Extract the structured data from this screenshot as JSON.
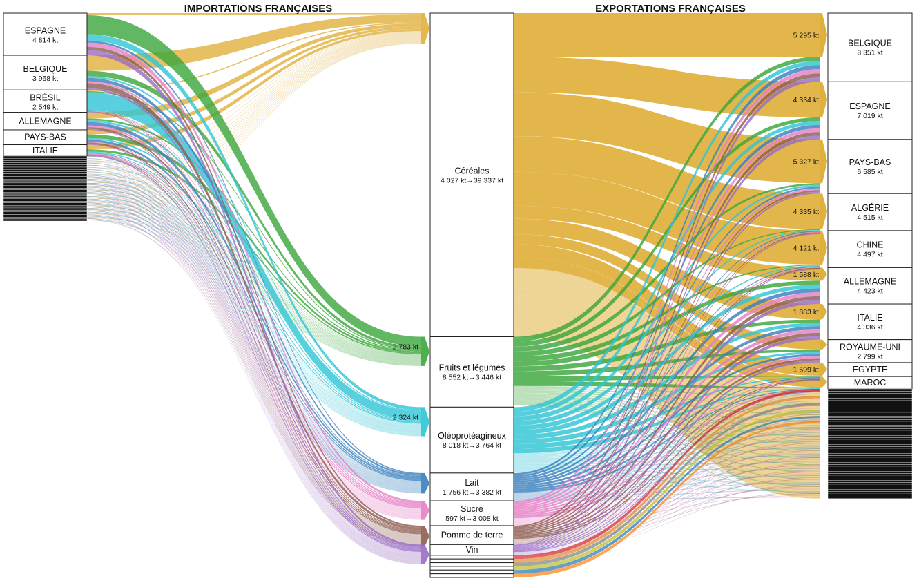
{
  "chart_data": {
    "type": "sankey",
    "title_left": "IMPORTATIONS FRANÇAISES",
    "title_right": "EXPORTATIONS FRANÇAISES",
    "import_countries": [
      {
        "name": "ESPAGNE",
        "value_label": "4 814 kt",
        "value": 4814
      },
      {
        "name": "BELGIQUE",
        "value_label": "3 968 kt",
        "value": 3968
      },
      {
        "name": "BRÉSIL",
        "value_label": "2 549 kt",
        "value": 2549
      },
      {
        "name": "ALLEMAGNE",
        "value_label": "",
        "value": 2000
      },
      {
        "name": "PAYS-BAS",
        "value_label": "",
        "value": 1700
      },
      {
        "name": "ITALIE",
        "value_label": "",
        "value": 1300
      }
    ],
    "products": [
      {
        "name": "Céréales",
        "flow_label": "4 027 kt→39 337 kt",
        "import": 4027,
        "export": 39337,
        "color": "#e0b03c"
      },
      {
        "name": "Fruits et légumes",
        "flow_label": "8 552 kt→3 446 kt",
        "import": 8552,
        "export": 3446,
        "color": "#3ba63b"
      },
      {
        "name": "Oléoprotéagineux",
        "flow_label": "8 018 kt→3 764 kt",
        "import": 8018,
        "export": 3764,
        "color": "#2fc4d4"
      },
      {
        "name": "Lait",
        "flow_label": "1 756 kt→3 382 kt",
        "import": 1756,
        "export": 3382,
        "color": "#3a80bd"
      },
      {
        "name": "Sucre",
        "flow_label": "597 kt→3 008 kt",
        "import": 597,
        "export": 3008,
        "color": "#e57fc6"
      },
      {
        "name": "Pomme de terre",
        "flow_label": "",
        "import": 1500,
        "export": 2300,
        "color": "#8f5d52"
      },
      {
        "name": "Vin",
        "flow_label": "",
        "import": 700,
        "export": 1300,
        "color": "#9a6cc4"
      }
    ],
    "export_countries": [
      {
        "name": "BELGIQUE",
        "value_label": "8 351 kt",
        "value": 8351,
        "cereal_label": "5 295 kt",
        "cereal": 5295
      },
      {
        "name": "ESPAGNE",
        "value_label": "7 019 kt",
        "value": 7019,
        "cereal_label": "4 334 kt",
        "cereal": 4334
      },
      {
        "name": "PAYS-BAS",
        "value_label": "6 585 kt",
        "value": 6585,
        "cereal_label": "5 327 kt",
        "cereal": 5327
      },
      {
        "name": "ALGÉRIE",
        "value_label": "4 515 kt",
        "value": 4515,
        "cereal_label": "4 335 kt",
        "cereal": 4335
      },
      {
        "name": "CHINE",
        "value_label": "4 497 kt",
        "value": 4497,
        "cereal_label": "4 121 kt",
        "cereal": 4121
      },
      {
        "name": "ALLEMAGNE",
        "value_label": "4 423 kt",
        "value": 4423,
        "cereal_label": "1 588 kt",
        "cereal": 1588
      },
      {
        "name": "ITALIE",
        "value_label": "4 336 kt",
        "value": 4336,
        "cereal_label": "1 883 kt",
        "cereal": 1883
      },
      {
        "name": "ROYAUME-UNI",
        "value_label": "2 799 kt",
        "value": 2799,
        "cereal_label": "",
        "cereal": 1200
      },
      {
        "name": "EGYPTE",
        "value_label": "",
        "value": 1700,
        "cereal_label": "1 599 kt",
        "cereal": 1599
      },
      {
        "name": "MAROC",
        "value_label": "",
        "value": 1500,
        "cereal_label": "",
        "cereal": 1300
      }
    ],
    "import_flow_labels": [
      {
        "product": "Fruits et légumes",
        "label": "2 783 kt",
        "value": 2783
      },
      {
        "product": "Oléoprotéagineux",
        "label": "2 324 kt",
        "value": 2324
      }
    ]
  }
}
